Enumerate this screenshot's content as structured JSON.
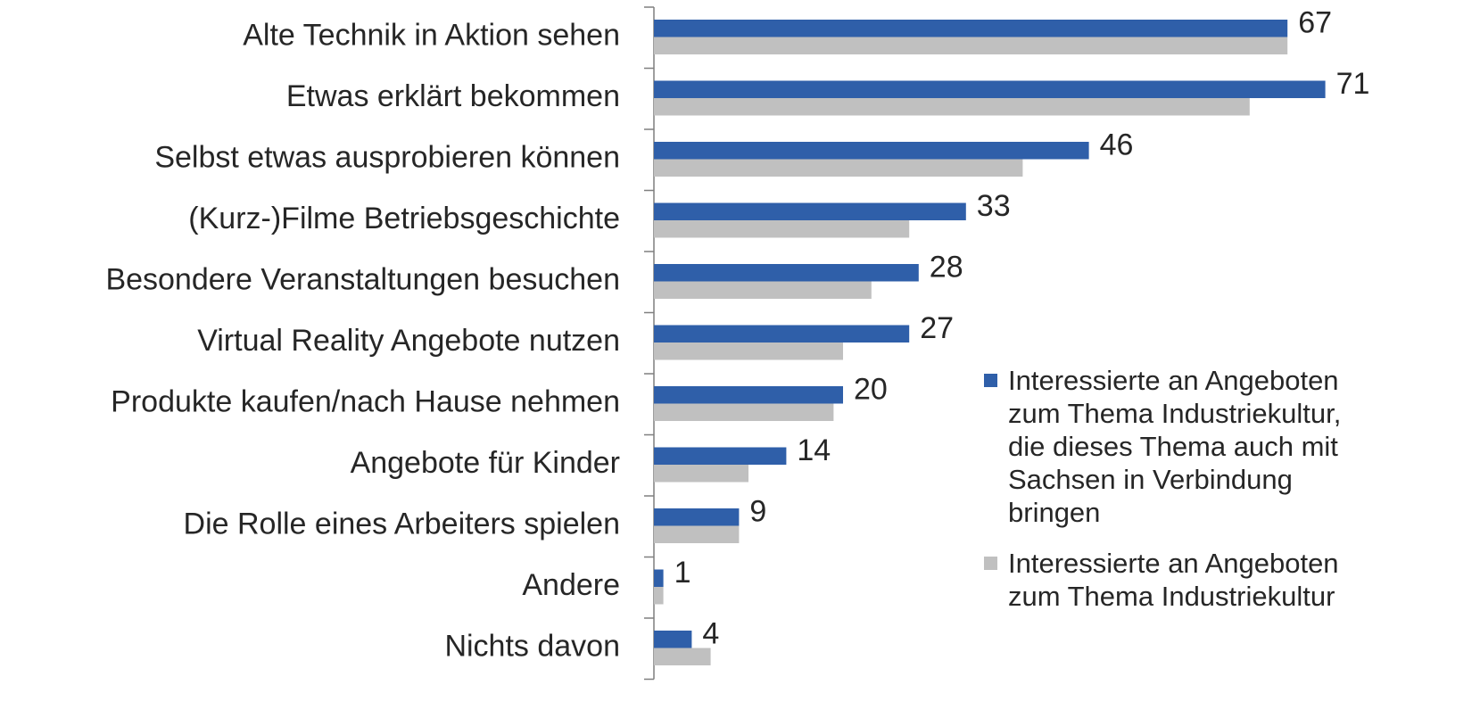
{
  "chart_data": {
    "type": "hbar",
    "categories": [
      "Alte Technik in Aktion sehen",
      "Etwas erklärt bekommen",
      "Selbst etwas ausprobieren können",
      "(Kurz-)Filme Betriebsgeschichte",
      "Besondere Veranstaltungen besuchen",
      "Virtual Reality Angebote nutzen",
      "Produkte kaufen/nach Hause nehmen",
      "Angebote für Kinder",
      "Die Rolle eines Arbeiters spielen",
      "Andere",
      "Nichts davon"
    ],
    "series": [
      {
        "name": "Interessierte an Angeboten zum Thema Industriekultur, die dieses Thema auch mit Sachsen in Verbindung bringen",
        "color": "#2f5fa9",
        "data_labels": true,
        "values": [
          67,
          71,
          46,
          33,
          28,
          27,
          20,
          14,
          9,
          1,
          4
        ]
      },
      {
        "name": "Interessierte an Angeboten zum Thema Industriekultur",
        "color": "#c0c0c0",
        "data_labels": false,
        "values": [
          67,
          63,
          39,
          27,
          23,
          20,
          19,
          10,
          9,
          1,
          6
        ]
      }
    ],
    "legend": "right"
  }
}
